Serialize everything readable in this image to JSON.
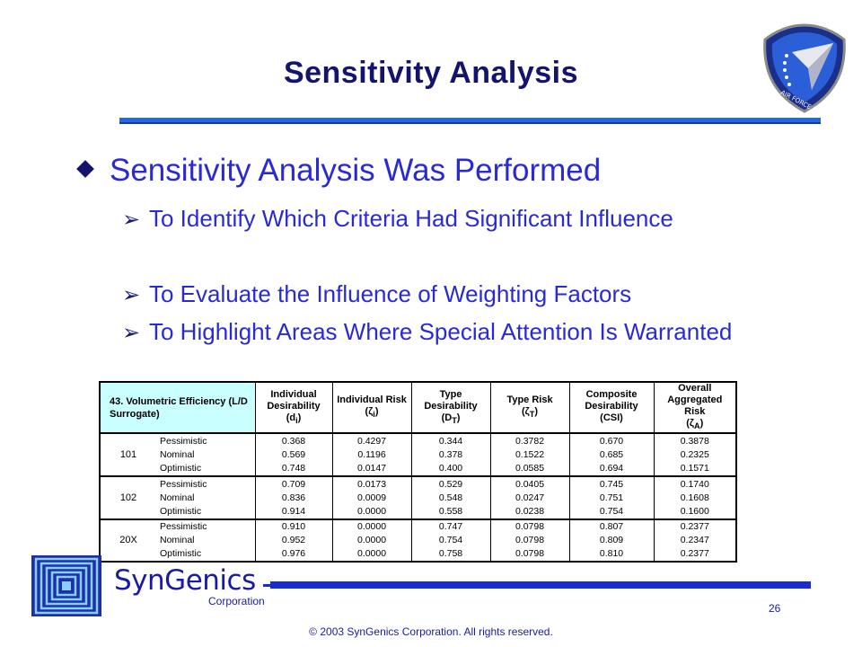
{
  "slide": {
    "title": "Sensitivity Analysis",
    "main_bullet": "Sensitivity Analysis Was Performed",
    "sub_bullets": [
      "To Identify Which Criteria Had Significant Influence",
      "To Evaluate the Influence of Weighting Factors",
      "To Highlight Areas Where Special Attention Is Warranted"
    ]
  },
  "emblem": {
    "text": "AIR FORCE RESEARCH LABORATORY"
  },
  "table": {
    "corner_header": "43. Volumetric Efficiency (L/D Surrogate)",
    "columns": [
      {
        "label": "Individual Desirability",
        "symbol": "(d",
        "sub": "i",
        "close": ")"
      },
      {
        "label": "Individual Risk",
        "symbol": "(ζ",
        "sub": "i",
        "close": ")"
      },
      {
        "label": "Type Desirability",
        "symbol": "(D",
        "sub": "T",
        "close": ")"
      },
      {
        "label": "Type Risk",
        "symbol": "(ζ",
        "sub": "T",
        "close": ")"
      },
      {
        "label": "Composite Desirability",
        "symbol": "(CSI)",
        "sub": "",
        "close": ""
      },
      {
        "label": "Overall Aggregated Risk",
        "symbol": "(ζ",
        "sub": "A",
        "close": ")"
      }
    ],
    "groups": [
      {
        "label": "101",
        "rows": [
          {
            "case": "Pessimistic",
            "values": [
              "0.368",
              "0.4297",
              "0.344",
              "0.3782",
              "0.670",
              "0.3878"
            ]
          },
          {
            "case": "Nominal",
            "values": [
              "0.569",
              "0.1196",
              "0.378",
              "0.1522",
              "0.685",
              "0.2325"
            ]
          },
          {
            "case": "Optimistic",
            "values": [
              "0.748",
              "0.0147",
              "0.400",
              "0.0585",
              "0.694",
              "0.1571"
            ]
          }
        ]
      },
      {
        "label": "102",
        "rows": [
          {
            "case": "Pessimistic",
            "values": [
              "0.709",
              "0.0173",
              "0.529",
              "0.0405",
              "0.745",
              "0.1740"
            ]
          },
          {
            "case": "Nominal",
            "values": [
              "0.836",
              "0.0009",
              "0.548",
              "0.0247",
              "0.751",
              "0.1608"
            ]
          },
          {
            "case": "Optimistic",
            "values": [
              "0.914",
              "0.0000",
              "0.558",
              "0.0238",
              "0.754",
              "0.1600"
            ]
          }
        ]
      },
      {
        "label": "20X",
        "rows": [
          {
            "case": "Pessimistic",
            "values": [
              "0.910",
              "0.0000",
              "0.747",
              "0.0798",
              "0.807",
              "0.2377"
            ]
          },
          {
            "case": "Nominal",
            "values": [
              "0.952",
              "0.0000",
              "0.754",
              "0.0798",
              "0.809",
              "0.2347"
            ]
          },
          {
            "case": "Optimistic",
            "values": [
              "0.976",
              "0.0000",
              "0.758",
              "0.0798",
              "0.810",
              "0.2377"
            ]
          }
        ]
      }
    ]
  },
  "footer": {
    "logo_name": "SynGenics",
    "logo_sub": "Corporation",
    "page_number": "26",
    "copyright": "© 2003 SynGenics Corporation. All rights reserved."
  },
  "colors": {
    "title": "#14146e",
    "bullet_text": "#2a2ad4",
    "rule": "#2468e6",
    "table_header_highlight": "#c9ffff"
  }
}
